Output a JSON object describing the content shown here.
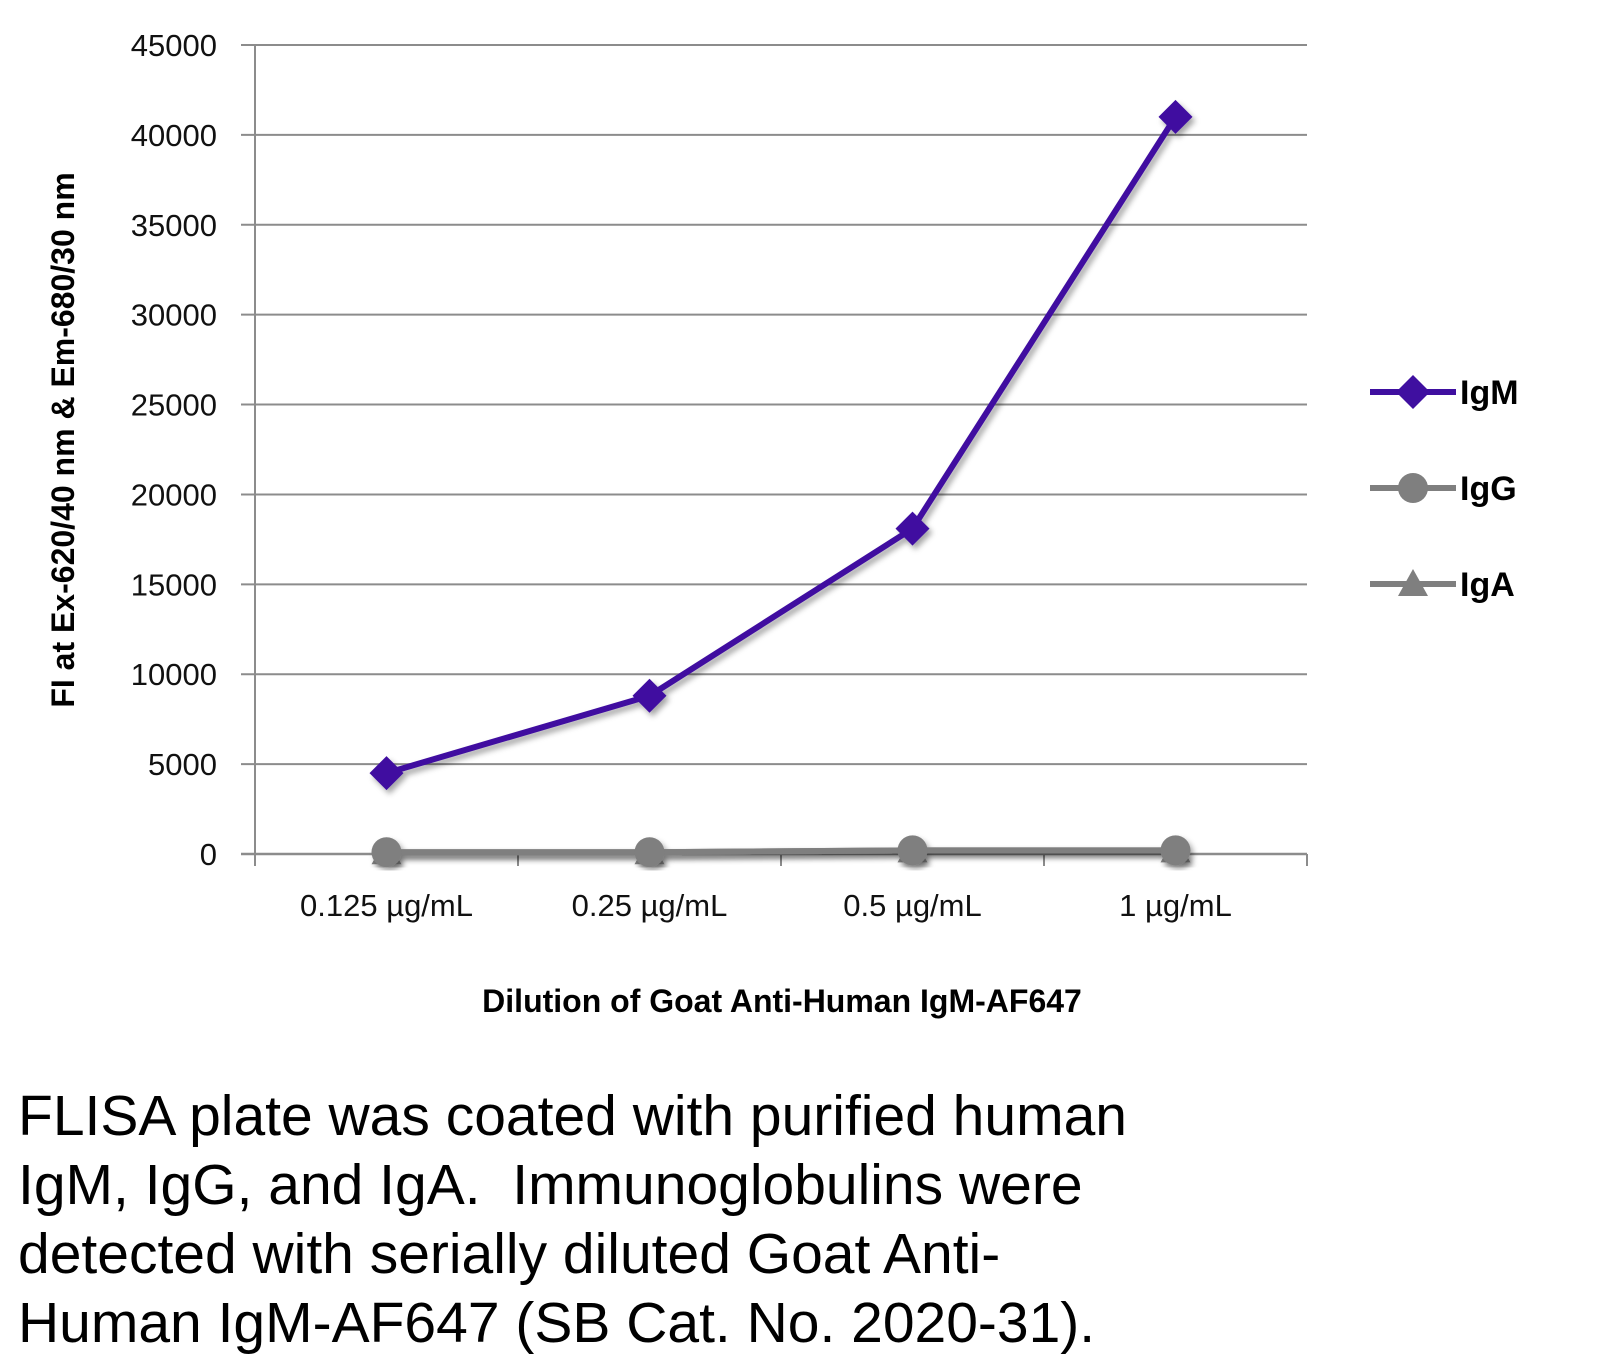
{
  "chart_data": {
    "type": "line",
    "xlabel": "Dilution of Goat Anti-Human IgM-AF647",
    "ylabel": "FI at Ex-620/40 nm & Em-680/30 nm",
    "categories": [
      "0.125 µg/mL",
      "0.25 µg/mL",
      "0.5 µg/mL",
      "1 µg/mL"
    ],
    "ylim": [
      0,
      45000
    ],
    "yticks": [
      0,
      5000,
      10000,
      15000,
      20000,
      25000,
      30000,
      35000,
      40000,
      45000
    ],
    "grid": true,
    "legend_position": "right",
    "series": [
      {
        "name": "IgM",
        "values": [
          4500,
          8800,
          18100,
          41000
        ],
        "color": "#3f0fa0",
        "marker": "diamond"
      },
      {
        "name": "IgG",
        "values": [
          100,
          100,
          200,
          200
        ],
        "color": "#7f7f7f",
        "marker": "circle"
      },
      {
        "name": "IgA",
        "values": [
          100,
          100,
          200,
          200
        ],
        "color": "#7f7f7f",
        "marker": "triangle"
      }
    ]
  },
  "caption": "FLISA plate was coated with purified human\nIgM, IgG, and IgA.  Immunoglobulins were\ndetected with serially diluted Goat Anti-\nHuman IgM-AF647 (SB Cat. No. 2020-31)."
}
